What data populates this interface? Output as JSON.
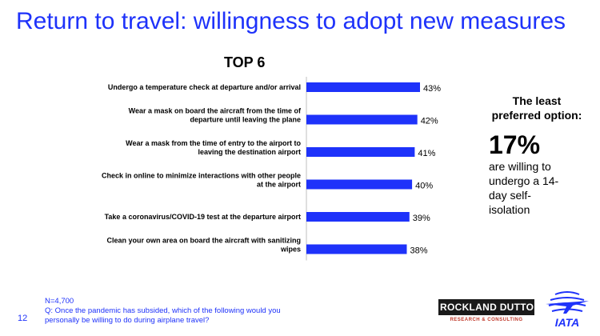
{
  "page": {
    "title": "Return to travel: willingness to adopt new measures",
    "page_number": "12",
    "footnote": {
      "sample": "N=4,700",
      "question": "Q: Once the pandemic has subsided, which of the following would you personally be willing to do during airplane travel?"
    }
  },
  "side_panel": {
    "heading": "The least preferred option:",
    "big_value": "17%",
    "text": "are willing to undergo a 14-day self-isolation"
  },
  "logos": {
    "rockland_name": "ROCKLAND DUTTON",
    "rockland_sub": "RESEARCH & CONSULTING",
    "iata": "IATA"
  },
  "chart_data": {
    "type": "bar",
    "orientation": "horizontal",
    "title": "TOP 6",
    "categories": [
      "Undergo a temperature check at departure and/or arrival",
      "Wear a mask on board the aircraft from the time of departure until leaving the plane",
      "Wear a mask from the time of entry to the airport to leaving the destination airport",
      "Check in online to minimize interactions with other people at the airport",
      "Take a coronavirus/COVID-19 test at the departure airport",
      "Clean your own area on board the aircraft with sanitizing wipes"
    ],
    "values": [
      43,
      42,
      41,
      40,
      39,
      38
    ],
    "labels": [
      "43%",
      "42%",
      "41%",
      "40%",
      "39%",
      "38%"
    ],
    "xlim": [
      0,
      43
    ],
    "grid": false,
    "bar_color": "#1e32fa"
  }
}
